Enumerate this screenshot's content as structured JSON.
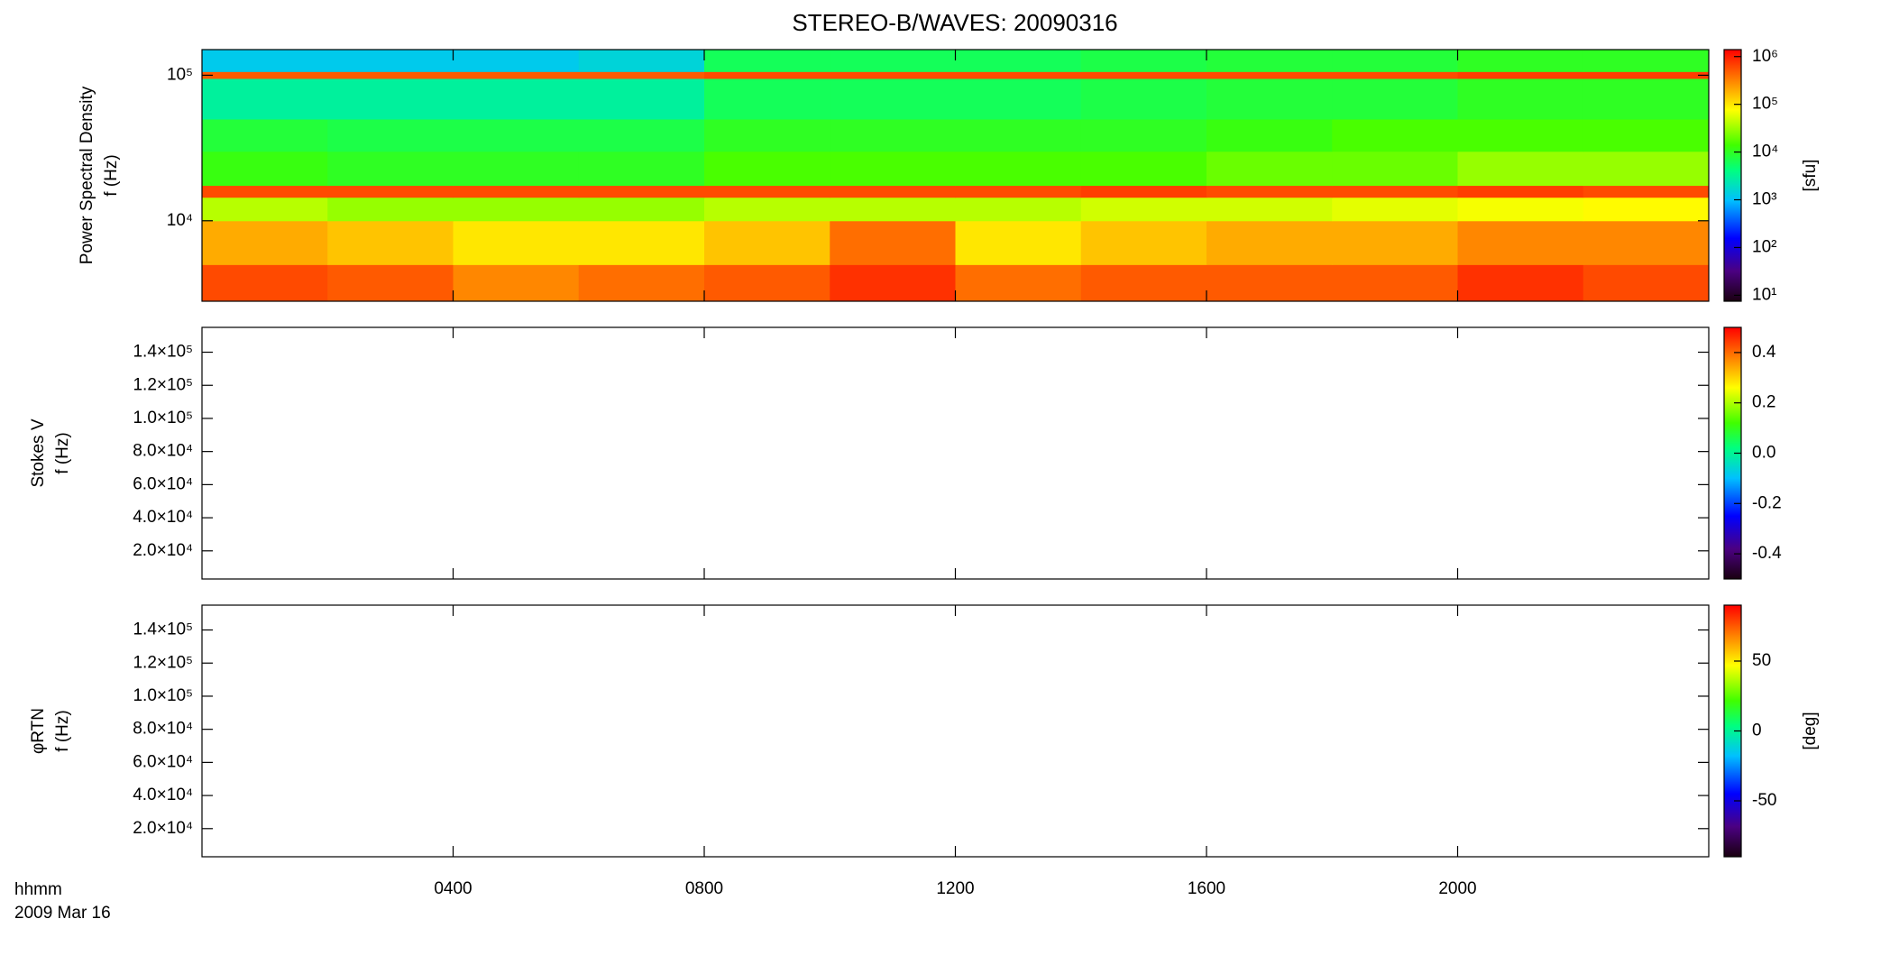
{
  "chart_data": [
    {
      "type": "heatmap",
      "title": "STEREO-B/WAVES: 20090316",
      "ylabel": [
        "Power Spectral Density",
        "f (Hz)"
      ],
      "xlim": [
        0,
        24
      ],
      "log_y": true,
      "ylim": [
        2800,
        150000
      ],
      "yticks": [
        {
          "value": 10000,
          "label": "10⁴"
        },
        {
          "value": 100000,
          "label": "10⁵"
        }
      ],
      "x_bins": [
        0,
        2,
        4,
        6,
        8,
        10,
        12,
        14,
        16,
        18,
        20,
        22,
        24
      ],
      "y_bins": [
        2800,
        5000,
        10000,
        14500,
        17500,
        30000,
        50000,
        95000,
        106000,
        150000
      ],
      "values": [
        [
          600000,
          500000,
          300000,
          400000,
          500000,
          800000,
          400000,
          500000,
          500000,
          500000,
          800000,
          600000
        ],
        [
          200000,
          150000,
          100000,
          100000,
          150000,
          400000,
          100000,
          150000,
          200000,
          200000,
          300000,
          300000
        ],
        [
          40000,
          30000,
          30000,
          30000,
          40000,
          40000,
          40000,
          50000,
          50000,
          60000,
          70000,
          80000
        ],
        [
          600000,
          600000,
          600000,
          600000,
          600000,
          600000,
          600000,
          700000,
          600000,
          600000,
          700000,
          600000
        ],
        [
          12000,
          10000,
          10000,
          10000,
          15000,
          15000,
          15000,
          15000,
          20000,
          20000,
          30000,
          30000
        ],
        [
          8000,
          7000,
          7000,
          7000,
          10000,
          10000,
          10000,
          10000,
          12000,
          15000,
          15000,
          15000
        ],
        [
          3000,
          3000,
          3000,
          3000,
          6000,
          6000,
          6000,
          7000,
          8000,
          8000,
          10000,
          10000
        ],
        [
          500000,
          500000,
          500000,
          500000,
          600000,
          600000,
          600000,
          600000,
          600000,
          600000,
          700000,
          700000
        ],
        [
          1200,
          1200,
          1200,
          1500,
          6000,
          6000,
          6000,
          7000,
          8000,
          8000,
          10000,
          10000
        ]
      ],
      "colorbar": {
        "log": true,
        "lim": [
          7.5,
          1400000
        ],
        "ticks": [
          {
            "value": 10,
            "label": "10¹"
          },
          {
            "value": 100,
            "label": "10²"
          },
          {
            "value": 1000,
            "label": "10³"
          },
          {
            "value": 10000,
            "label": "10⁴"
          },
          {
            "value": 100000,
            "label": "10⁵"
          },
          {
            "value": 1000000,
            "label": "10⁶"
          }
        ],
        "label": "[sfu]"
      }
    },
    {
      "type": "heatmap",
      "ylabel": [
        "Stokes V",
        "f (Hz)"
      ],
      "xlim": [
        0,
        24
      ],
      "log_y": false,
      "ylim": [
        3000,
        155000
      ],
      "yticks": [
        {
          "value": 20000,
          "label": "2.0×10⁴"
        },
        {
          "value": 40000,
          "label": "4.0×10⁴"
        },
        {
          "value": 60000,
          "label": "6.0×10⁴"
        },
        {
          "value": 80000,
          "label": "8.0×10⁴"
        },
        {
          "value": 100000,
          "label": "1.0×10⁵"
        },
        {
          "value": 120000,
          "label": "1.2×10⁵"
        },
        {
          "value": 140000,
          "label": "1.4×10⁵"
        }
      ],
      "colorbar": {
        "log": false,
        "lim": [
          -0.5,
          0.5
        ],
        "ticks": [
          -0.4,
          -0.2,
          {
            "value": 0,
            "label": "0.0"
          },
          0.2,
          0.4
        ]
      }
    },
    {
      "type": "heatmap",
      "ylabel": [
        "φRTN",
        "f (Hz)"
      ],
      "xlim": [
        0,
        24
      ],
      "log_y": false,
      "ylim": [
        3000,
        155000
      ],
      "yticks": [
        {
          "value": 20000,
          "label": "2.0×10⁴"
        },
        {
          "value": 40000,
          "label": "4.0×10⁴"
        },
        {
          "value": 60000,
          "label": "6.0×10⁴"
        },
        {
          "value": 80000,
          "label": "8.0×10⁴"
        },
        {
          "value": 100000,
          "label": "1.0×10⁵"
        },
        {
          "value": 120000,
          "label": "1.2×10⁵"
        },
        {
          "value": 140000,
          "label": "1.4×10⁵"
        }
      ],
      "colorbar": {
        "log": false,
        "lim": [
          -90,
          90
        ],
        "ticks": [
          -50,
          0,
          50
        ],
        "label": "[deg]"
      },
      "x_label": "hhmm",
      "date_label": "2009 Mar 16",
      "xticks": [
        {
          "value": 4,
          "label": "0400"
        },
        {
          "value": 8,
          "label": "0800"
        },
        {
          "value": 12,
          "label": "1200"
        },
        {
          "value": 16,
          "label": "1600"
        },
        {
          "value": 20,
          "label": "2000"
        }
      ]
    }
  ]
}
